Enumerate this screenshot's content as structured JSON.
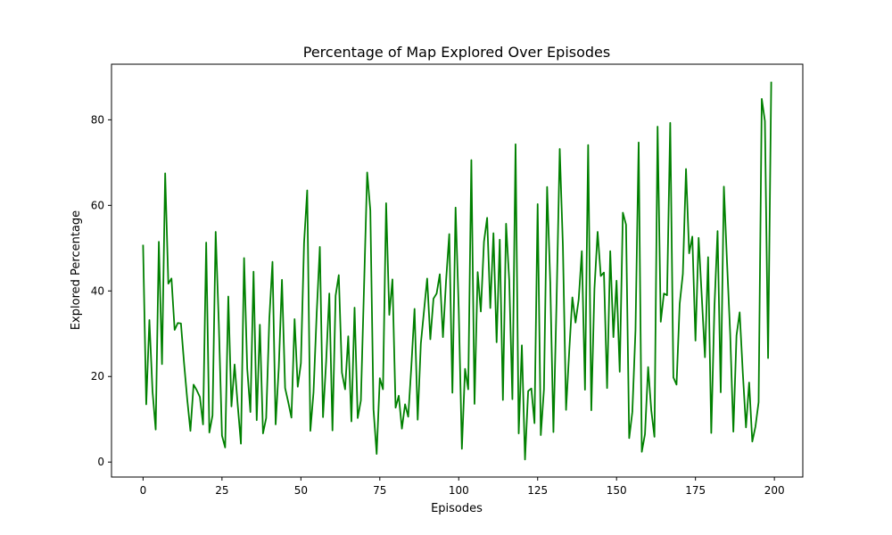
{
  "chart_data": {
    "type": "line",
    "title": "Percentage of Map Explored Over Episodes",
    "xlabel": "Episodes",
    "ylabel": "Explored Percentage",
    "xlim": [
      -10,
      209
    ],
    "ylim": [
      -3.5,
      93.0
    ],
    "xticks": [
      0,
      25,
      50,
      75,
      100,
      125,
      150,
      175,
      200
    ],
    "yticks": [
      0,
      20,
      40,
      60,
      80
    ],
    "grid": false,
    "legend": "none",
    "series": [
      {
        "color": "#008000",
        "x": [
          0,
          1,
          2,
          3,
          4,
          5,
          6,
          7,
          8,
          9,
          10,
          11,
          12,
          13,
          14,
          15,
          16,
          17,
          18,
          19,
          20,
          21,
          22,
          23,
          24,
          25,
          26,
          27,
          28,
          29,
          30,
          31,
          32,
          33,
          34,
          35,
          36,
          37,
          38,
          39,
          40,
          41,
          42,
          43,
          44,
          45,
          46,
          47,
          48,
          49,
          50,
          51,
          52,
          53,
          54,
          55,
          56,
          57,
          58,
          59,
          60,
          61,
          62,
          63,
          64,
          65,
          66,
          67,
          68,
          69,
          70,
          71,
          72,
          73,
          74,
          75,
          76,
          77,
          78,
          79,
          80,
          81,
          82,
          83,
          84,
          85,
          86,
          87,
          88,
          89,
          90,
          91,
          92,
          93,
          94,
          95,
          96,
          97,
          98,
          99,
          100,
          101,
          102,
          103,
          104,
          105,
          106,
          107,
          108,
          109,
          110,
          111,
          112,
          113,
          114,
          115,
          116,
          117,
          118,
          119,
          120,
          121,
          122,
          123,
          124,
          125,
          126,
          127,
          128,
          129,
          130,
          131,
          132,
          133,
          134,
          135,
          136,
          137,
          138,
          139,
          140,
          141,
          142,
          143,
          144,
          145,
          146,
          147,
          148,
          149,
          150,
          151,
          152,
          153,
          154,
          155,
          156,
          157,
          158,
          159,
          160,
          161,
          162,
          163,
          164,
          165,
          166,
          167,
          168,
          169,
          170,
          171,
          172,
          173,
          174,
          175,
          176,
          177,
          178,
          179,
          180,
          181,
          182,
          183,
          184,
          185,
          186,
          187,
          188,
          189,
          190,
          191,
          192,
          193,
          194,
          195,
          196,
          197,
          198,
          199
        ],
        "values": [
          50.8,
          13.5,
          33.2,
          16.5,
          7.6,
          51.5,
          22.9,
          67.5,
          41.7,
          42.9,
          30.9,
          32.5,
          32.4,
          23.0,
          14.6,
          7.3,
          18.1,
          16.8,
          15.2,
          8.8,
          51.3,
          6.9,
          10.9,
          53.8,
          32.3,
          6.2,
          3.4,
          38.7,
          13.0,
          22.8,
          13.2,
          4.3,
          47.7,
          21.8,
          11.7,
          44.5,
          9.8,
          32.1,
          6.7,
          10.3,
          33.5,
          46.8,
          8.8,
          22.2,
          42.6,
          17.3,
          14.0,
          10.4,
          33.4,
          17.6,
          23.1,
          51.2,
          63.5,
          7.3,
          16.3,
          34.7,
          50.3,
          10.5,
          23.5,
          39.4,
          7.4,
          38.9,
          43.7,
          20.9,
          17.0,
          29.4,
          9.5,
          36.1,
          10.3,
          14.4,
          40.9,
          67.7,
          58.8,
          12.3,
          1.9,
          19.6,
          17.0,
          60.5,
          34.4,
          42.7,
          12.7,
          15.5,
          7.8,
          13.5,
          10.6,
          22.5,
          35.8,
          9.9,
          27.7,
          35.3,
          42.9,
          28.7,
          38.2,
          39.4,
          43.9,
          29.2,
          42.5,
          53.3,
          16.2,
          59.5,
          35.8,
          3.1,
          21.8,
          17.0,
          70.6,
          13.6,
          44.4,
          35.2,
          51.5,
          57.1,
          36.0,
          53.5,
          28.0,
          52.0,
          14.5,
          55.7,
          42.5,
          14.7,
          74.3,
          6.7,
          27.3,
          0.6,
          16.6,
          17.2,
          9.1,
          60.3,
          6.3,
          17.0,
          64.3,
          42.0,
          7.0,
          37.8,
          73.2,
          50.5,
          12.2,
          25.8,
          38.5,
          32.6,
          38.0,
          49.3,
          16.9,
          74.1,
          12.1,
          40.6,
          53.8,
          43.5,
          44.3,
          17.3,
          49.3,
          29.2,
          42.4,
          21.1,
          58.3,
          55.5,
          5.6,
          11.7,
          30.8,
          74.7,
          2.4,
          6.5,
          22.2,
          12.1,
          5.9,
          78.4,
          32.8,
          39.4,
          39.0,
          79.3,
          19.8,
          18.1,
          37.0,
          44.0,
          68.5,
          48.8,
          52.7,
          28.4,
          52.4,
          38.6,
          24.5,
          47.9,
          6.8,
          36.1,
          54.0,
          16.3,
          64.4,
          46.6,
          29.9,
          7.1,
          29.6,
          35.0,
          20.8,
          8.1,
          18.6,
          4.8,
          8.3,
          14.0,
          84.9,
          79.7,
          24.3,
          88.9
        ]
      }
    ]
  }
}
